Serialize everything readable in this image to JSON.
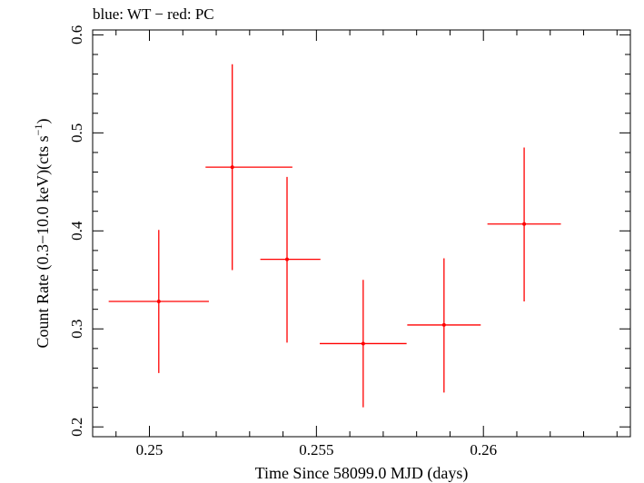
{
  "chart_data": {
    "type": "scatter",
    "title": "blue: WT − red: PC",
    "xlabel": "Time Since 58099.0 MJD (days)",
    "ylabel_main": "Count Rate (0.3−10.0 keV)(cts s",
    "ylabel_sup": "−1",
    "ylabel_close": ")",
    "xlim": [
      0.2483,
      0.2644
    ],
    "ylim": [
      0.19,
      0.605
    ],
    "x_ticks": [
      0.25,
      0.255,
      0.26
    ],
    "x_tick_labels": [
      "0.25",
      "0.255",
      "0.26"
    ],
    "y_ticks": [
      0.2,
      0.3,
      0.4,
      0.5,
      0.6
    ],
    "y_tick_labels": [
      "0.2",
      "0.3",
      "0.4",
      "0.5",
      "0.6"
    ],
    "grid": false,
    "series": [
      {
        "color": "#ff0000",
        "points": [
          {
            "x": 0.25028,
            "xerr": [
              0.0015,
              0.0015
            ],
            "y": 0.328,
            "yerr": [
              0.073,
              0.073
            ]
          },
          {
            "x": 0.25248,
            "xerr": [
              0.0008,
              0.0018
            ],
            "y": 0.465,
            "yerr": [
              0.105,
              0.105
            ]
          },
          {
            "x": 0.25412,
            "xerr": [
              0.0008,
              0.001
            ],
            "y": 0.371,
            "yerr": [
              0.085,
              0.084
            ]
          },
          {
            "x": 0.2564,
            "xerr": [
              0.0013,
              0.0013
            ],
            "y": 0.285,
            "yerr": [
              0.065,
              0.065
            ]
          },
          {
            "x": 0.25882,
            "xerr": [
              0.0011,
              0.0011
            ],
            "y": 0.304,
            "yerr": [
              0.069,
              0.068
            ]
          },
          {
            "x": 0.26122,
            "xerr": [
              0.0011,
              0.0011
            ],
            "y": 0.407,
            "yerr": [
              0.079,
              0.078
            ]
          }
        ]
      }
    ]
  }
}
